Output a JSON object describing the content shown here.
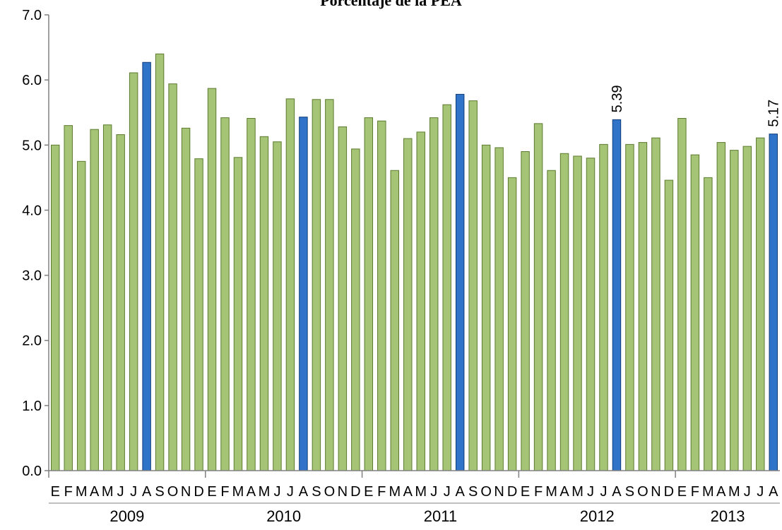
{
  "chart_data": {
    "type": "bar",
    "title": "Porcentaje de la PEA",
    "xlabel": "",
    "ylabel": "",
    "ylim": [
      0,
      7
    ],
    "yticks": [
      "0.0",
      "1.0",
      "2.0",
      "3.0",
      "4.0",
      "5.0",
      "6.0",
      "7.0"
    ],
    "grid": false,
    "month_labels": [
      "E",
      "F",
      "M",
      "A",
      "M",
      "J",
      "J",
      "A",
      "S",
      "O",
      "N",
      "D"
    ],
    "years": [
      {
        "label": "2009",
        "months": 12
      },
      {
        "label": "2010",
        "months": 12
      },
      {
        "label": "2011",
        "months": 12
      },
      {
        "label": "2012",
        "months": 12
      },
      {
        "label": "2013",
        "months": 8
      }
    ],
    "categories": [
      "2009-E",
      "2009-F",
      "2009-M",
      "2009-A",
      "2009-M",
      "2009-J",
      "2009-J",
      "2009-A",
      "2009-S",
      "2009-O",
      "2009-N",
      "2009-D",
      "2010-E",
      "2010-F",
      "2010-M",
      "2010-A",
      "2010-M",
      "2010-J",
      "2010-J",
      "2010-A",
      "2010-S",
      "2010-O",
      "2010-N",
      "2010-D",
      "2011-E",
      "2011-F",
      "2011-M",
      "2011-A",
      "2011-M",
      "2011-J",
      "2011-J",
      "2011-A",
      "2011-S",
      "2011-O",
      "2011-N",
      "2011-D",
      "2012-E",
      "2012-F",
      "2012-M",
      "2012-A",
      "2012-M",
      "2012-J",
      "2012-J",
      "2012-A",
      "2012-S",
      "2012-O",
      "2012-N",
      "2012-D",
      "2013-E",
      "2013-F",
      "2013-M",
      "2013-A",
      "2013-M",
      "2013-J",
      "2013-J",
      "2013-A"
    ],
    "values": [
      5.0,
      5.3,
      4.75,
      5.24,
      5.31,
      5.16,
      6.11,
      6.27,
      6.4,
      5.94,
      5.26,
      4.79,
      5.87,
      5.42,
      4.81,
      5.41,
      5.13,
      5.05,
      5.71,
      5.43,
      5.7,
      5.7,
      5.28,
      4.94,
      5.42,
      5.37,
      4.61,
      5.1,
      5.2,
      5.42,
      5.62,
      5.78,
      5.68,
      5.0,
      4.96,
      4.5,
      4.9,
      5.33,
      4.61,
      4.87,
      4.83,
      4.8,
      5.01,
      5.39,
      5.01,
      5.04,
      5.11,
      4.46,
      5.41,
      4.85,
      4.5,
      5.04,
      4.92,
      4.98,
      5.11,
      5.17
    ],
    "highlight_indices": [
      7,
      19,
      31,
      43,
      55
    ],
    "data_labels": [
      {
        "index": 43,
        "text": "5.39"
      },
      {
        "index": 55,
        "text": "5.17"
      }
    ],
    "colors": {
      "bar_fill": "#a5c476",
      "bar_stroke": "#5c7a2e",
      "highlight_fill": "#2f74c8",
      "highlight_stroke": "#0f3c7a",
      "axis": "#808080",
      "text": "#000000"
    }
  }
}
